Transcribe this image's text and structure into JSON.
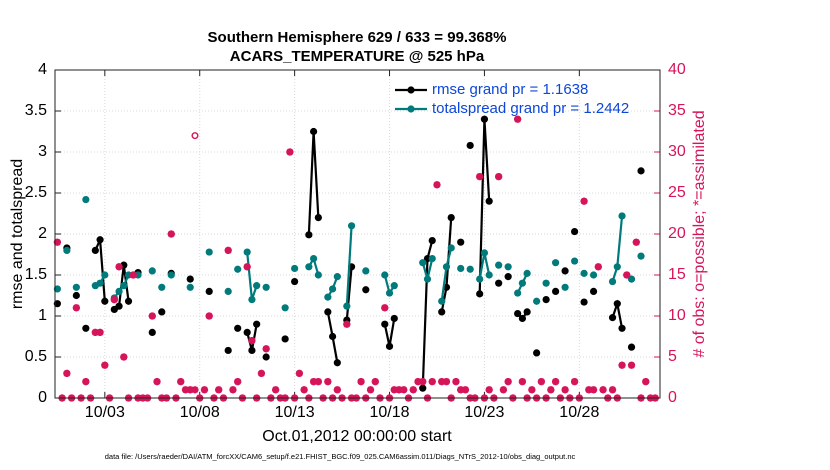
{
  "chart_data": {
    "type": "line",
    "title": [
      "Southern Hemisphere 629 / 633 = 99.368%",
      "ACARS_TEMPERATURE @ 525 hPa"
    ],
    "xlabel": "Oct.01,2012 00:00:00 start",
    "ylabel": "rmse and totalspread",
    "y2label": "# of obs: o=possible; *=assimilated",
    "footnote": "data file: /Users/raeder/DAI/ATM_forcXX/CAM6_setup/f.e21.FHIST_BGC.f09_025.CAM6assim.011/Diags_NTrS_2012-10/obs_diag_output.nc",
    "xlim": [
      -0.625,
      31.25
    ],
    "xticks": [
      {
        "value": 2,
        "label": "10/03"
      },
      {
        "value": 7,
        "label": "10/08"
      },
      {
        "value": 12,
        "label": "10/13"
      },
      {
        "value": 17,
        "label": "10/18"
      },
      {
        "value": 22,
        "label": "10/23"
      },
      {
        "value": 27,
        "label": "10/28"
      }
    ],
    "ylim": [
      0,
      4
    ],
    "yticks": [
      0,
      0.5,
      1,
      1.5,
      2,
      2.5,
      3,
      3.5,
      4
    ],
    "y2lim": [
      0,
      40
    ],
    "y2ticks": [
      0,
      5,
      10,
      15,
      20,
      25,
      30,
      35,
      40
    ],
    "y2color": "#d6145a",
    "grid": true,
    "legend": "upper right",
    "legend_color": "#0d47d9",
    "x": [
      -0.5,
      -0.25,
      0,
      0.25,
      0.5,
      0.75,
      1,
      1.25,
      1.5,
      1.75,
      2,
      2.25,
      2.5,
      2.75,
      3,
      3.25,
      3.5,
      3.75,
      4,
      4.5,
      4.75,
      5,
      5.25,
      5.5,
      5.75,
      6.5,
      6.75,
      7.5,
      7.75,
      8.5,
      8.75,
      9,
      9.25,
      9.5,
      9.75,
      10,
      10.25,
      10.5,
      10.75,
      11.5,
      11.75,
      12,
      12.25,
      12.75,
      13,
      13.25,
      13.5,
      13.75,
      14,
      14.25,
      14.5,
      14.75,
      15,
      15.25,
      15.75,
      16,
      16.75,
      17,
      17.25,
      17.5,
      18.75,
      19,
      19.25,
      19.5,
      19.75,
      20,
      20.25,
      20.5,
      20.75,
      21,
      21.25,
      21.5,
      21.75,
      22,
      22.25,
      22.5,
      22.75,
      23,
      23.25,
      23.5,
      23.75,
      24,
      24.25,
      24.5,
      24.75,
      25,
      25.25,
      25.5,
      25.75,
      26,
      26.25,
      26.5,
      26.75,
      27,
      27.25,
      27.5,
      27.75,
      28,
      28.75,
      29,
      29.25,
      29.5,
      29.75,
      30,
      30.25
    ],
    "series": [
      {
        "name": "rmse grand pr = 1.1638",
        "color": "#000000",
        "marker": "dot",
        "values": [
          1.15,
          null,
          1.83,
          null,
          1.25,
          null,
          0.85,
          null,
          1.8,
          1.93,
          1.18,
          null,
          1.08,
          1.12,
          1.62,
          1.18,
          null,
          1.53,
          null,
          0.8,
          null,
          1.05,
          null,
          1.52,
          null,
          1.45,
          null,
          1.3,
          null,
          0.58,
          null,
          0.85,
          null,
          0.8,
          0.58,
          0.9,
          null,
          0.5,
          null,
          0.72,
          null,
          1.42,
          null,
          1.99,
          3.25,
          2.2,
          null,
          1.05,
          0.75,
          0.43,
          null,
          0.95,
          1.6,
          null,
          1.32,
          null,
          0.9,
          0.63,
          0.97,
          null,
          0.12,
          1.7,
          1.92,
          null,
          1.05,
          1.35,
          2.2,
          null,
          1.9,
          null,
          3.08,
          null,
          1.27,
          3.4,
          2.4,
          null,
          1.4,
          null,
          1.48,
          null,
          1.03,
          0.97,
          1.05,
          null,
          0.55,
          null,
          1.2,
          null,
          1.3,
          null,
          1.55,
          null,
          2.03,
          null,
          1.17,
          null,
          1.3,
          null,
          0.98,
          1.15,
          0.85,
          null,
          0.62,
          null,
          2.77
        ]
      },
      {
        "name": "totalspread grand pr = 1.2442",
        "color": "#007a7a",
        "marker": "dot",
        "values": [
          1.33,
          null,
          1.8,
          null,
          1.35,
          null,
          2.42,
          null,
          1.37,
          1.4,
          1.5,
          null,
          1.22,
          1.3,
          1.37,
          1.5,
          null,
          1.5,
          null,
          1.55,
          null,
          1.35,
          null,
          1.5,
          null,
          1.35,
          null,
          1.78,
          null,
          1.3,
          null,
          1.57,
          null,
          1.78,
          1.2,
          1.37,
          null,
          1.35,
          null,
          1.1,
          null,
          1.58,
          null,
          1.6,
          1.7,
          1.5,
          null,
          1.23,
          1.33,
          1.48,
          null,
          1.12,
          2.1,
          null,
          1.55,
          null,
          1.5,
          1.28,
          1.37,
          null,
          1.65,
          1.45,
          1.7,
          null,
          1.18,
          1.6,
          1.83,
          null,
          1.58,
          null,
          1.57,
          null,
          1.45,
          1.77,
          1.5,
          null,
          1.62,
          null,
          1.6,
          null,
          1.28,
          1.4,
          1.52,
          null,
          1.18,
          null,
          1.4,
          null,
          1.65,
          null,
          1.35,
          null,
          1.67,
          null,
          1.52,
          null,
          1.5,
          null,
          1.42,
          1.6,
          2.22,
          null,
          1.45,
          null,
          1.73
        ]
      },
      {
        "color": "#d6145a",
        "marker": "circle",
        "axis": "y2",
        "x": [
          -0.5,
          -0.25,
          0,
          0.25,
          0.5,
          0.75,
          1,
          1.25,
          1.5,
          1.75,
          2,
          2.25,
          2.5,
          2.75,
          3,
          3.25,
          3.5,
          3.75,
          4,
          4.25,
          4.5,
          4.75,
          5,
          5.25,
          5.5,
          5.75,
          6,
          6.25,
          6.5,
          6.75,
          7,
          7.25,
          7.5,
          7.75,
          8,
          8.25,
          8.5,
          8.75,
          9,
          9.25,
          9.5,
          9.75,
          10,
          10.25,
          10.5,
          10.75,
          11,
          11.25,
          11.5,
          11.75,
          12,
          12.25,
          12.5,
          12.75,
          13,
          13.25,
          13.5,
          13.75,
          14,
          14.25,
          14.5,
          14.75,
          15,
          15.25,
          15.5,
          15.75,
          16,
          16.25,
          16.5,
          16.75,
          17,
          17.25,
          17.5,
          17.75,
          18,
          18.25,
          18.5,
          18.75,
          19,
          19.25,
          19.5,
          19.75,
          20,
          20.25,
          20.5,
          20.75,
          21,
          21.25,
          21.5,
          21.75,
          22,
          22.25,
          22.5,
          22.75,
          23,
          23.25,
          23.5,
          23.75,
          24,
          24.25,
          24.5,
          24.75,
          25,
          25.25,
          25.5,
          25.75,
          26,
          26.25,
          26.5,
          26.75,
          27,
          27.25,
          27.5,
          27.75,
          28,
          28.25,
          28.5,
          28.75,
          29,
          29.25,
          29.5,
          29.75,
          30,
          30.25,
          30.5,
          30.75,
          31
        ],
        "values": [
          19,
          0,
          3,
          0,
          11,
          0,
          2,
          0,
          8,
          8,
          4,
          0,
          12,
          16,
          5,
          0,
          15,
          0,
          0,
          0,
          10,
          2,
          0,
          0,
          20,
          0,
          2,
          1,
          1,
          32,
          0,
          1,
          10,
          0,
          1,
          0,
          18,
          1,
          2,
          0,
          16,
          7,
          0,
          3,
          6,
          0,
          1,
          0,
          0,
          30,
          0,
          3,
          1,
          0,
          2,
          2,
          0,
          2,
          0,
          1,
          0,
          9,
          0,
          0,
          2,
          0,
          1,
          2,
          0,
          11,
          0,
          1,
          1,
          1,
          0,
          1,
          2,
          2,
          0,
          2,
          26,
          2,
          2,
          0,
          2,
          1,
          1,
          0,
          0,
          27,
          0,
          1,
          0,
          27,
          1,
          2,
          0,
          34,
          2,
          0,
          1,
          0,
          2,
          0,
          1,
          2,
          0,
          1,
          0,
          2,
          0,
          24,
          1,
          1,
          16,
          1,
          0,
          1,
          0,
          4,
          15,
          4,
          19,
          0,
          2,
          0,
          0
        ]
      },
      {
        "color": "#d6145a",
        "marker": "asterisk",
        "axis": "y2",
        "x": [
          -0.5,
          -0.25,
          0,
          0.25,
          0.5,
          0.75,
          1,
          1.25,
          1.5,
          1.75,
          2,
          2.25,
          2.5,
          2.75,
          3,
          3.25,
          3.5,
          3.75,
          4,
          4.25,
          4.5,
          4.75,
          5,
          5.25,
          5.5,
          5.75,
          6,
          6.25,
          6.5,
          6.75,
          7,
          7.25,
          7.5,
          7.75,
          8,
          8.25,
          8.5,
          8.75,
          9,
          9.25,
          9.5,
          9.75,
          10,
          10.25,
          10.5,
          10.75,
          11,
          11.25,
          11.5,
          11.75,
          12,
          12.25,
          12.5,
          12.75,
          13,
          13.25,
          13.5,
          13.75,
          14,
          14.25,
          14.5,
          14.75,
          15,
          15.25,
          15.5,
          15.75,
          16,
          16.25,
          16.5,
          16.75,
          17,
          17.25,
          17.5,
          17.75,
          18,
          18.25,
          18.5,
          18.75,
          19,
          19.25,
          19.5,
          19.75,
          20,
          20.25,
          20.5,
          20.75,
          21,
          21.25,
          21.5,
          21.75,
          22,
          22.25,
          22.5,
          22.75,
          23,
          23.25,
          23.5,
          23.75,
          24,
          24.25,
          24.5,
          24.75,
          25,
          25.25,
          25.5,
          25.75,
          26,
          26.25,
          26.5,
          26.75,
          27,
          27.25,
          27.5,
          27.75,
          28,
          28.25,
          28.5,
          28.75,
          29,
          29.25,
          29.5,
          29.75,
          30,
          30.25,
          30.5,
          30.75,
          31
        ],
        "values": [
          19,
          0,
          3,
          0,
          11,
          0,
          2,
          0,
          8,
          8,
          4,
          0,
          12,
          16,
          5,
          0,
          15,
          0,
          0,
          0,
          10,
          2,
          0,
          0,
          20,
          0,
          2,
          1,
          1,
          1,
          0,
          1,
          10,
          0,
          1,
          0,
          18,
          1,
          2,
          0,
          16,
          7,
          0,
          3,
          6,
          0,
          1,
          0,
          0,
          30,
          0,
          3,
          1,
          0,
          2,
          2,
          0,
          2,
          0,
          1,
          0,
          9,
          0,
          0,
          2,
          0,
          1,
          2,
          0,
          11,
          0,
          1,
          1,
          1,
          0,
          1,
          2,
          2,
          0,
          2,
          26,
          2,
          2,
          0,
          2,
          1,
          1,
          0,
          0,
          27,
          0,
          1,
          0,
          27,
          1,
          2,
          0,
          34,
          2,
          0,
          1,
          0,
          2,
          0,
          1,
          2,
          0,
          1,
          0,
          2,
          0,
          24,
          1,
          1,
          16,
          1,
          0,
          1,
          0,
          4,
          15,
          4,
          19,
          0,
          2,
          0,
          0
        ]
      }
    ]
  }
}
